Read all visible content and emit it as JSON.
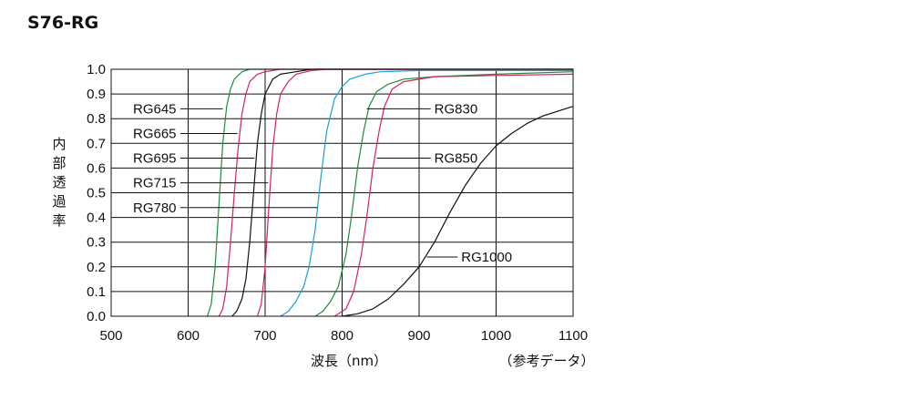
{
  "page": {
    "title": "S76-RG"
  },
  "chart_data": {
    "type": "line",
    "xlabel": "波長（nm）",
    "ylabel": "内部透過率",
    "note": "（参考データ）",
    "xlim": [
      500,
      1100
    ],
    "ylim": [
      0,
      1.0
    ],
    "x_ticks": [
      500,
      600,
      700,
      800,
      900,
      1000,
      1100
    ],
    "y_ticks": [
      "0.0",
      "0.1",
      "0.2",
      "0.3",
      "0.4",
      "0.5",
      "0.6",
      "0.7",
      "0.8",
      "0.9",
      "1.0"
    ],
    "grid": true,
    "series": [
      {
        "name": "RG645",
        "color": "#1f8a3c",
        "points": [
          [
            625,
            0
          ],
          [
            630,
            0.05
          ],
          [
            635,
            0.2
          ],
          [
            640,
            0.45
          ],
          [
            645,
            0.7
          ],
          [
            650,
            0.85
          ],
          [
            655,
            0.92
          ],
          [
            660,
            0.96
          ],
          [
            670,
            0.99
          ],
          [
            680,
            1.0
          ],
          [
            1100,
            1.0
          ]
        ]
      },
      {
        "name": "RG665",
        "color": "#d81f5e",
        "points": [
          [
            640,
            0
          ],
          [
            645,
            0.03
          ],
          [
            650,
            0.12
          ],
          [
            655,
            0.3
          ],
          [
            660,
            0.5
          ],
          [
            665,
            0.68
          ],
          [
            670,
            0.82
          ],
          [
            675,
            0.9
          ],
          [
            680,
            0.95
          ],
          [
            690,
            0.98
          ],
          [
            700,
            0.99
          ],
          [
            720,
            1.0
          ],
          [
            1100,
            1.0
          ]
        ]
      },
      {
        "name": "RG695",
        "color": "#111111",
        "points": [
          [
            657,
            0
          ],
          [
            663,
            0.02
          ],
          [
            670,
            0.07
          ],
          [
            675,
            0.15
          ],
          [
            680,
            0.3
          ],
          [
            685,
            0.5
          ],
          [
            690,
            0.7
          ],
          [
            695,
            0.82
          ],
          [
            700,
            0.9
          ],
          [
            710,
            0.96
          ],
          [
            720,
            0.98
          ],
          [
            740,
            0.99
          ],
          [
            760,
            1.0
          ],
          [
            1100,
            1.0
          ]
        ]
      },
      {
        "name": "RG715",
        "color": "#d81f5e",
        "points": [
          [
            690,
            0
          ],
          [
            695,
            0.05
          ],
          [
            700,
            0.2
          ],
          [
            705,
            0.45
          ],
          [
            710,
            0.68
          ],
          [
            715,
            0.82
          ],
          [
            720,
            0.9
          ],
          [
            730,
            0.95
          ],
          [
            740,
            0.98
          ],
          [
            760,
            0.995
          ],
          [
            780,
            1.0
          ],
          [
            1100,
            1.0
          ]
        ]
      },
      {
        "name": "RG780",
        "color": "#1aa0d6",
        "points": [
          [
            720,
            0
          ],
          [
            730,
            0.02
          ],
          [
            740,
            0.06
          ],
          [
            750,
            0.12
          ],
          [
            757,
            0.2
          ],
          [
            765,
            0.35
          ],
          [
            772,
            0.55
          ],
          [
            780,
            0.75
          ],
          [
            790,
            0.88
          ],
          [
            800,
            0.93
          ],
          [
            810,
            0.96
          ],
          [
            830,
            0.98
          ],
          [
            850,
            0.99
          ],
          [
            900,
            0.995
          ],
          [
            1100,
            0.995
          ]
        ]
      },
      {
        "name": "RG830",
        "color": "#1f8a3c",
        "points": [
          [
            765,
            0
          ],
          [
            775,
            0.02
          ],
          [
            785,
            0.06
          ],
          [
            795,
            0.12
          ],
          [
            805,
            0.25
          ],
          [
            812,
            0.4
          ],
          [
            820,
            0.6
          ],
          [
            828,
            0.75
          ],
          [
            835,
            0.85
          ],
          [
            845,
            0.91
          ],
          [
            860,
            0.94
          ],
          [
            880,
            0.96
          ],
          [
            920,
            0.97
          ],
          [
            1000,
            0.98
          ],
          [
            1100,
            0.99
          ]
        ]
      },
      {
        "name": "RG850",
        "color": "#d81f5e",
        "points": [
          [
            790,
            0
          ],
          [
            805,
            0.03
          ],
          [
            815,
            0.1
          ],
          [
            825,
            0.25
          ],
          [
            832,
            0.4
          ],
          [
            840,
            0.6
          ],
          [
            848,
            0.75
          ],
          [
            855,
            0.85
          ],
          [
            865,
            0.92
          ],
          [
            880,
            0.95
          ],
          [
            920,
            0.97
          ],
          [
            1000,
            0.975
          ],
          [
            1100,
            0.98
          ]
        ]
      },
      {
        "name": "RG1000",
        "color": "#111111",
        "points": [
          [
            800,
            0
          ],
          [
            820,
            0.01
          ],
          [
            840,
            0.03
          ],
          [
            860,
            0.07
          ],
          [
            880,
            0.13
          ],
          [
            900,
            0.2
          ],
          [
            920,
            0.3
          ],
          [
            940,
            0.42
          ],
          [
            960,
            0.53
          ],
          [
            980,
            0.62
          ],
          [
            1000,
            0.69
          ],
          [
            1020,
            0.74
          ],
          [
            1040,
            0.78
          ],
          [
            1060,
            0.81
          ],
          [
            1080,
            0.83
          ],
          [
            1100,
            0.85
          ]
        ]
      }
    ],
    "annotations": [
      {
        "series": "RG645",
        "text": "RG645",
        "side": "left",
        "label_x": 565,
        "label_y": 0.84,
        "target_x": 645,
        "target_y": 0.84
      },
      {
        "series": "RG665",
        "text": "RG665",
        "side": "left",
        "label_x": 565,
        "label_y": 0.74,
        "target_x": 664,
        "target_y": 0.74
      },
      {
        "series": "RG695",
        "text": "RG695",
        "side": "left",
        "label_x": 565,
        "label_y": 0.64,
        "target_x": 686,
        "target_y": 0.64
      },
      {
        "series": "RG715",
        "text": "RG715",
        "side": "left",
        "label_x": 565,
        "label_y": 0.54,
        "target_x": 704,
        "target_y": 0.54
      },
      {
        "series": "RG780",
        "text": "RG780",
        "side": "left",
        "label_x": 565,
        "label_y": 0.44,
        "target_x": 768,
        "target_y": 0.44
      },
      {
        "series": "RG830",
        "text": "RG830",
        "side": "right",
        "label_x": 915,
        "label_y": 0.84,
        "target_x": 832,
        "target_y": 0.84
      },
      {
        "series": "RG850",
        "text": "RG850",
        "side": "right",
        "label_x": 915,
        "label_y": 0.64,
        "target_x": 845,
        "target_y": 0.64
      },
      {
        "series": "RG1000",
        "text": "RG1000",
        "side": "right",
        "label_x": 950,
        "label_y": 0.24,
        "target_x": 910,
        "target_y": 0.24
      }
    ]
  }
}
